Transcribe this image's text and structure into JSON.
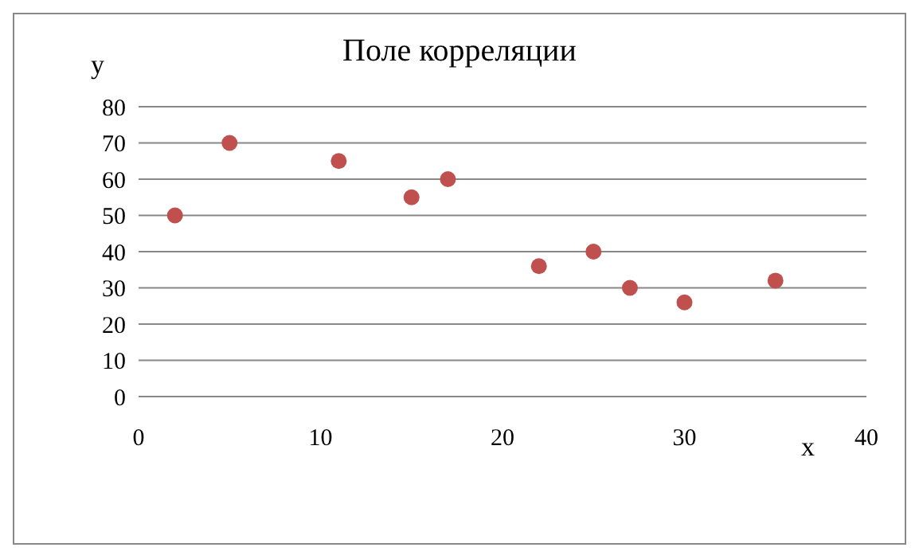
{
  "chart_data": {
    "type": "scatter",
    "title": "Поле корреляции",
    "xlabel": "x",
    "ylabel": "y",
    "x": [
      2,
      5,
      11,
      15,
      17,
      22,
      25,
      27,
      30,
      35
    ],
    "values": [
      50,
      70,
      65,
      55,
      60,
      36,
      40,
      30,
      26,
      32
    ],
    "color": "#c0504d",
    "xlim": [
      0,
      40
    ],
    "xticks": [
      0,
      10,
      20,
      30,
      40
    ],
    "ylim": [
      0,
      80
    ],
    "yticks": [
      0,
      10,
      20,
      30,
      40,
      50,
      60,
      70,
      80
    ],
    "grid": "y",
    "marker": "circle"
  }
}
